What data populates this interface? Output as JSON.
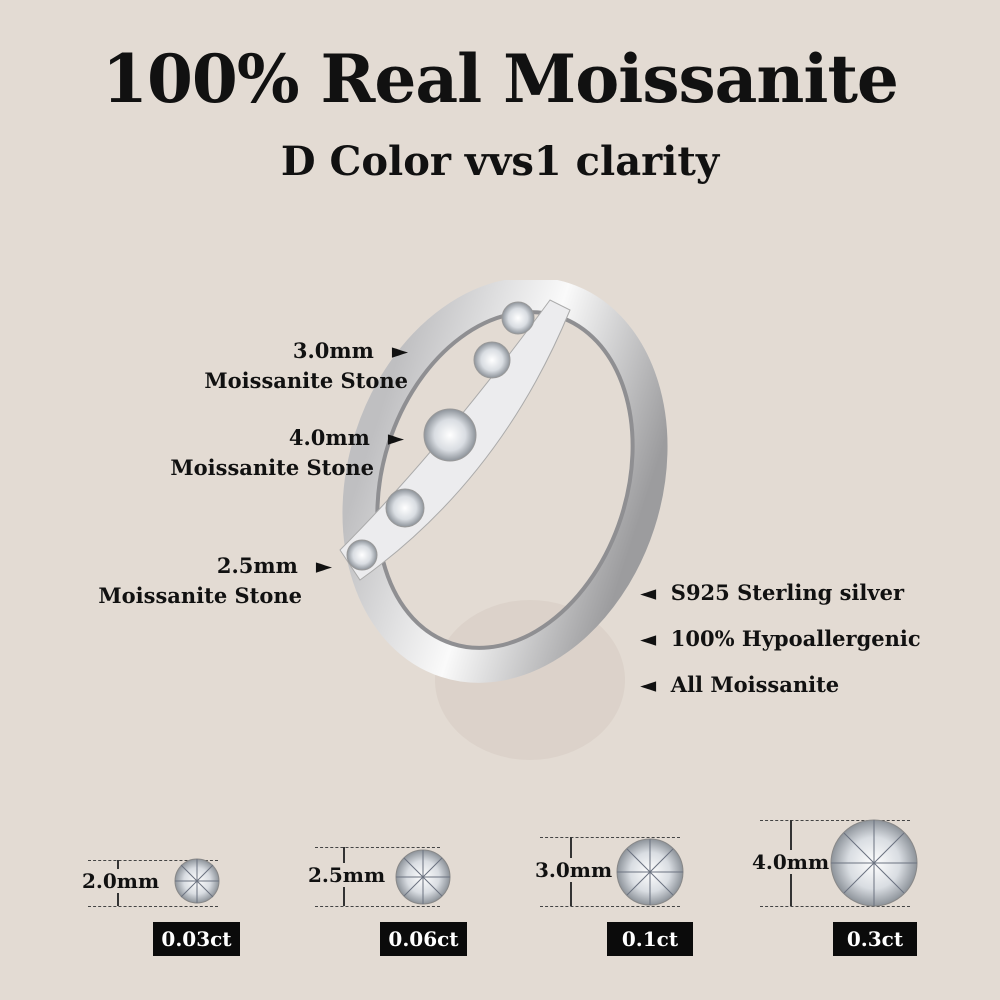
{
  "header": {
    "title": "100% Real Moissanite",
    "subtitle": "D Color vvs1 clarity"
  },
  "callouts": [
    {
      "size": "3.0mm",
      "label": "Moissanite Stone"
    },
    {
      "size": "4.0mm",
      "label": "Moissanite Stone"
    },
    {
      "size": "2.5mm",
      "label": "Moissanite Stone"
    }
  ],
  "features": [
    "S925 Sterling silver",
    "100% Hypoallergenic",
    "All Moissanite"
  ],
  "stones": [
    {
      "size": "2.0mm",
      "carat": "0.03ct"
    },
    {
      "size": "2.5mm",
      "carat": "0.06ct"
    },
    {
      "size": "3.0mm",
      "carat": "0.1ct"
    },
    {
      "size": "4.0mm",
      "carat": "0.3ct"
    }
  ],
  "colors": {
    "background": "#e3dbd3",
    "text": "#111111",
    "badge": "#0b0b0b"
  }
}
